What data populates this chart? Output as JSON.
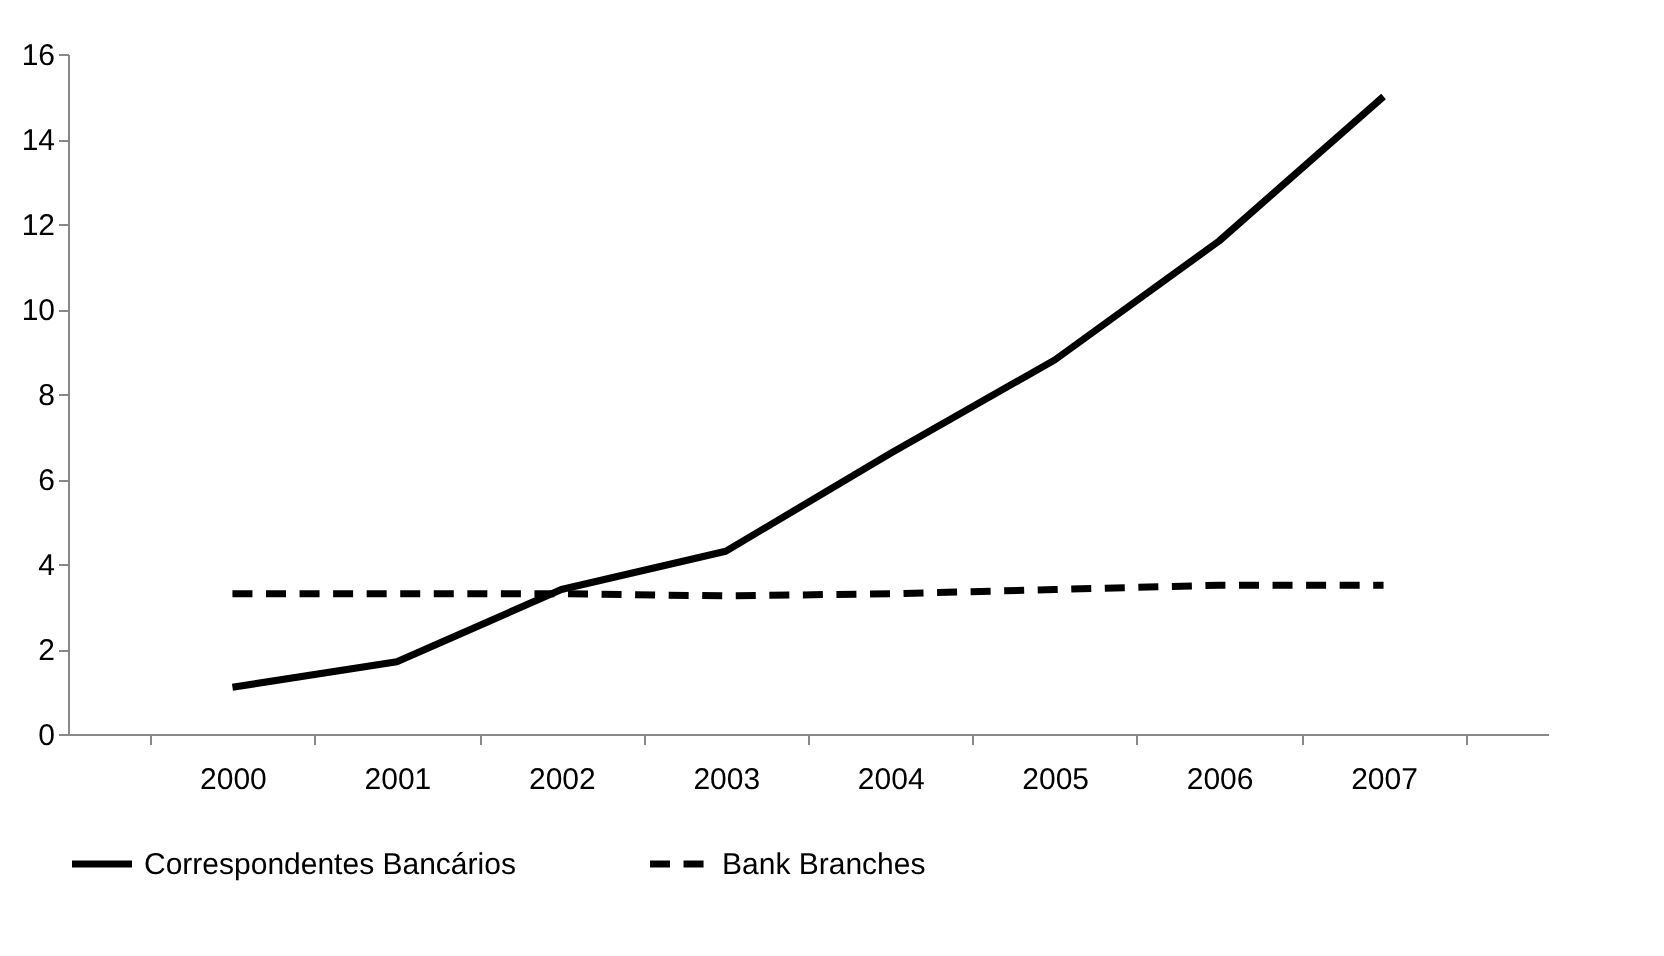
{
  "chart_data": {
    "type": "line",
    "categories": [
      "2000",
      "2001",
      "2002",
      "2003",
      "2004",
      "2005",
      "2006",
      "2007"
    ],
    "series": [
      {
        "name": "Correspondentes Bancários",
        "color": "#000000",
        "line_style": "solid",
        "values": [
          1.1,
          1.7,
          3.4,
          4.3,
          6.6,
          8.8,
          11.6,
          15.0
        ]
      },
      {
        "name": "Bank Branches",
        "color": "#000000",
        "line_style": "dashed",
        "values": [
          3.3,
          3.3,
          3.3,
          3.25,
          3.3,
          3.4,
          3.5,
          3.5
        ]
      }
    ],
    "ylim": [
      0,
      16
    ],
    "yticks": [
      0,
      2,
      4,
      6,
      8,
      10,
      12,
      14,
      16
    ],
    "grid": false,
    "legend": "bottom"
  }
}
